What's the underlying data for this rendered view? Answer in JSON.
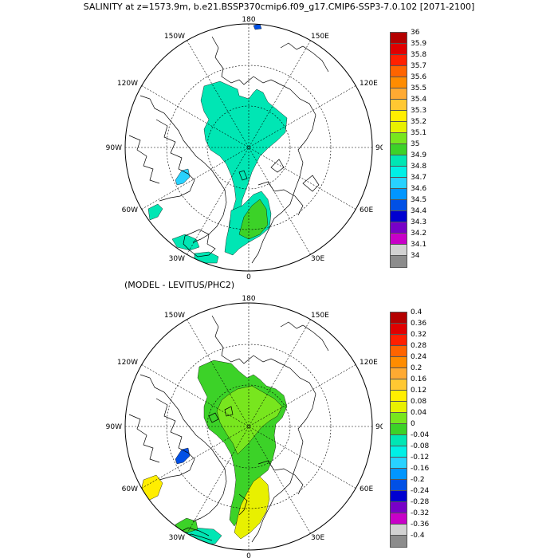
{
  "title": "SALINITY at z=1573.9m, b.e21.BSSP370cmip6.f09_g17.CMIP6-SSP3-7.0.102 [2071-2100]",
  "subtitle": "(MODEL - LEVITUS/PHC2)",
  "longitude_labels": {
    "top": "180",
    "bottom": "0",
    "left": "90W",
    "right": "90E",
    "upper_left": "150W",
    "upper_right": "150E",
    "left_upper": "120W",
    "right_upper": "120E",
    "left_lower": "60W",
    "right_lower": "60E",
    "lower_left": "30W",
    "lower_right": "30E"
  },
  "colorbar1": {
    "labels": [
      "36",
      "35.9",
      "35.8",
      "35.7",
      "35.6",
      "35.5",
      "35.4",
      "35.3",
      "35.2",
      "35.1",
      "35",
      "34.9",
      "34.8",
      "34.7",
      "34.6",
      "34.5",
      "34.4",
      "34.3",
      "34.2",
      "34.1",
      "34"
    ],
    "colors": [
      "#b40000",
      "#e00000",
      "#ff2000",
      "#ff6400",
      "#ff8c00",
      "#ffaa32",
      "#ffc832",
      "#ffee00",
      "#e8f000",
      "#78e61e",
      "#3cd228",
      "#00e6b4",
      "#00f0e6",
      "#28d2ff",
      "#0096ff",
      "#0050e6",
      "#0000d0",
      "#7800c8",
      "#c800c8",
      "#d2d2d2",
      "#8c8c8c"
    ]
  },
  "colorbar2": {
    "labels": [
      "0.4",
      "0.36",
      "0.32",
      "0.28",
      "0.24",
      "0.2",
      "0.16",
      "0.12",
      "0.08",
      "0.04",
      "0",
      "-0.04",
      "-0.08",
      "-0.12",
      "-0.16",
      "-0.2",
      "-0.24",
      "-0.28",
      "-0.32",
      "-0.36",
      "-0.4"
    ],
    "colors": [
      "#b40000",
      "#e00000",
      "#ff2000",
      "#ff6400",
      "#ff8c00",
      "#ffaa32",
      "#ffc832",
      "#ffee00",
      "#e8f000",
      "#78e61e",
      "#3cd228",
      "#00e6b4",
      "#00f0e6",
      "#28d2ff",
      "#0096ff",
      "#0050e6",
      "#0000d0",
      "#7800c8",
      "#c800c8",
      "#d2d2d2",
      "#8c8c8c"
    ]
  },
  "map1_fill": {
    "main": "#00e6b4",
    "atlantic": "#3cd228",
    "baffin": "#28d2ff",
    "baffin_dark": "#0096ff",
    "pole_blue": "#0050e6"
  },
  "map2_fill": {
    "main": "#3cd228",
    "central": "#78e61e",
    "atlantic": "#e8f000",
    "baffin": "#0050e6",
    "greenland": "#ffee00",
    "coast_band": "#00e6b4"
  }
}
